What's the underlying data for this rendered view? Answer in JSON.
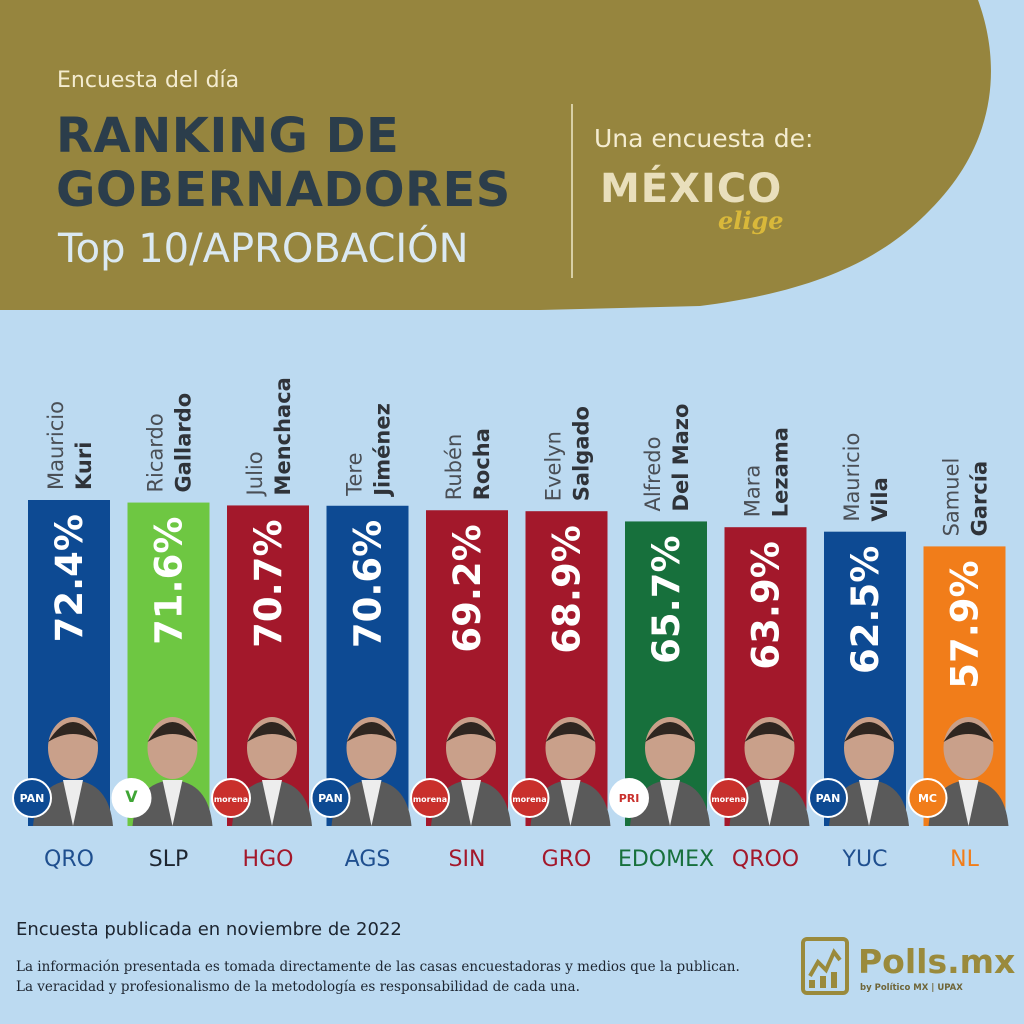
{
  "header": {
    "kicker": "Encuesta del día",
    "title_line1": "RANKING DE",
    "title_line2": "GOBERNADORES",
    "subtitle": "Top 10/APROBACIÓN",
    "credit_label": "Una encuesta de:",
    "logo_main": "MÉXICO",
    "logo_sub": "elige"
  },
  "colors": {
    "header_bg": "#96853e",
    "background": "#bcdaf1",
    "PAN": "#0d4a93",
    "PVEM": "#6ec742",
    "morena": "#a3182b",
    "PRI": "#17703c",
    "MC": "#f17d1a"
  },
  "chart_data": {
    "type": "bar",
    "unit": "%",
    "ylim": [
      0,
      100
    ],
    "series": [
      {
        "first": "Mauricio",
        "last": "Kuri",
        "value": 72.4,
        "label": "72.4%",
        "party": "PAN",
        "party_label": "PAN",
        "state": "QRO",
        "color": "#0d4a93",
        "state_color": "#1f4f8f"
      },
      {
        "first": "Ricardo",
        "last": "Gallardo",
        "value": 71.6,
        "label": "71.6%",
        "party": "PVEM",
        "party_label": "V",
        "state": "SLP",
        "color": "#6ec742",
        "state_color": "#1d2530"
      },
      {
        "first": "Julio",
        "last": "Menchaca",
        "value": 70.7,
        "label": "70.7%",
        "party": "morena",
        "party_label": "morena",
        "state": "HGO",
        "color": "#a3182b",
        "state_color": "#a3182b"
      },
      {
        "first": "Tere",
        "last": "Jiménez",
        "value": 70.6,
        "label": "70.6%",
        "party": "PAN",
        "party_label": "PAN",
        "state": "AGS",
        "color": "#0d4a93",
        "state_color": "#1f4f8f"
      },
      {
        "first": "Rubén",
        "last": "Rocha",
        "value": 69.2,
        "label": "69.2%",
        "party": "morena",
        "party_label": "morena",
        "state": "SIN",
        "color": "#a3182b",
        "state_color": "#a3182b"
      },
      {
        "first": "Evelyn",
        "last": "Salgado",
        "value": 68.9,
        "label": "68.9%",
        "party": "morena",
        "party_label": "morena",
        "state": "GRO",
        "color": "#a3182b",
        "state_color": "#a3182b"
      },
      {
        "first": "Alfredo",
        "last": "Del Mazo",
        "value": 65.7,
        "label": "65.7%",
        "party": "PRI",
        "party_label": "PRI",
        "state": "EDOMEX",
        "color": "#17703c",
        "state_color": "#17703c"
      },
      {
        "first": "Mara",
        "last": "Lezama",
        "value": 63.9,
        "label": "63.9%",
        "party": "morena",
        "party_label": "morena",
        "state": "QROO",
        "color": "#a3182b",
        "state_color": "#a3182b"
      },
      {
        "first": "Mauricio",
        "last": "Vila",
        "value": 62.5,
        "label": "62.5%",
        "party": "PAN",
        "party_label": "PAN",
        "state": "YUC",
        "color": "#0d4a93",
        "state_color": "#1f4f8f"
      },
      {
        "first": "Samuel",
        "last": "García",
        "value": 57.9,
        "label": "57.9%",
        "party": "MC",
        "party_label": "MC",
        "state": "NL",
        "color": "#f17d1a",
        "state_color": "#f17d1a"
      }
    ]
  },
  "footer": {
    "published": "Encuesta publicada en noviembre de 2022",
    "note_line1": "La información presentada es tomada directamente de las casas encuestadoras y medios que la publican.",
    "note_line2": "La veracidad y profesionalismo de la metodología es responsabilidad de cada una.",
    "brand_name": "Polls.mx",
    "brand_by": "by Político MX | UPAX"
  }
}
